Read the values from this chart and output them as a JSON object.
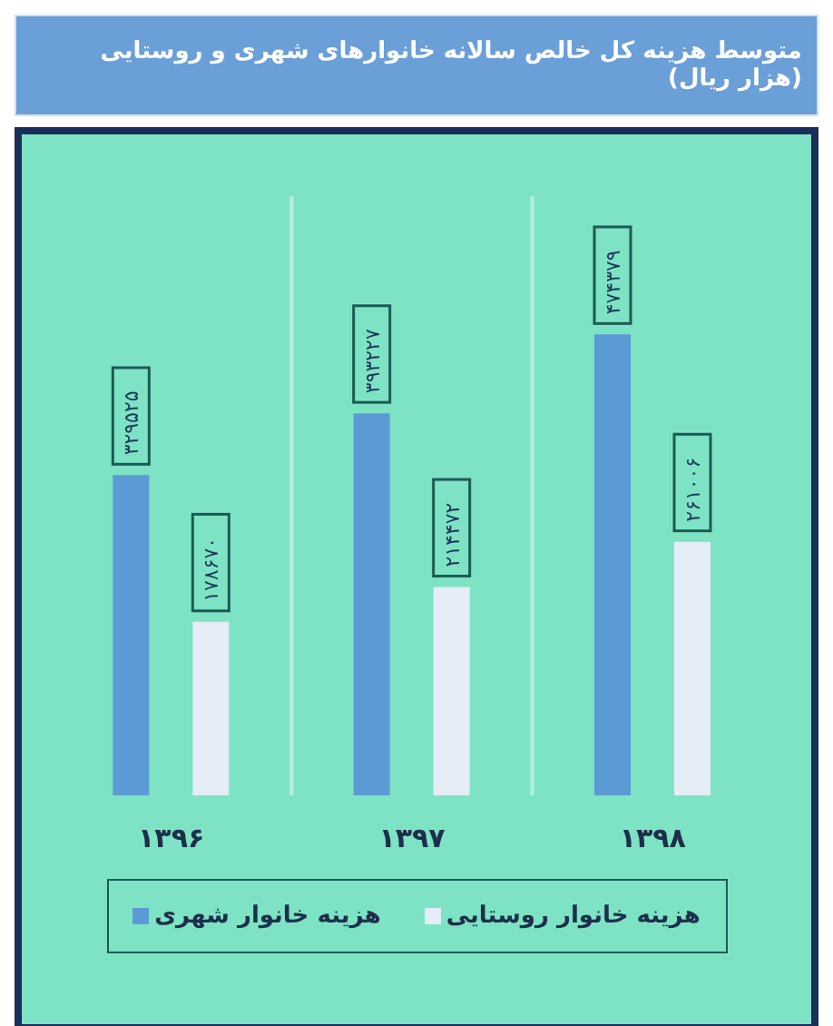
{
  "chart_data": {
    "type": "bar",
    "title": "متوسط هزینه کل خالص سالانه خانوارهای شهری و روستایی (هزار ریال)",
    "categories": [
      "۱۳۹۶",
      "۱۳۹۷",
      "۱۳۹۸"
    ],
    "series": [
      {
        "name": "هزینه خانوار شهری",
        "color": "#5b9bd5",
        "values": [
          329525,
          393227,
          474379
        ],
        "value_labels": [
          "۳۲۹۵۲۵",
          "۳۹۳۲۲۷",
          "۴۷۴۳۷۹"
        ]
      },
      {
        "name": "هزینه خانوار روستایی",
        "color": "#e4ecf5",
        "values": [
          178670,
          214472,
          261006
        ],
        "value_labels": [
          "۱۷۸۶۷۰",
          "۲۱۴۴۷۲",
          "۲۶۱۰۰۶"
        ]
      }
    ],
    "grid": "x",
    "legend": "bottom"
  }
}
